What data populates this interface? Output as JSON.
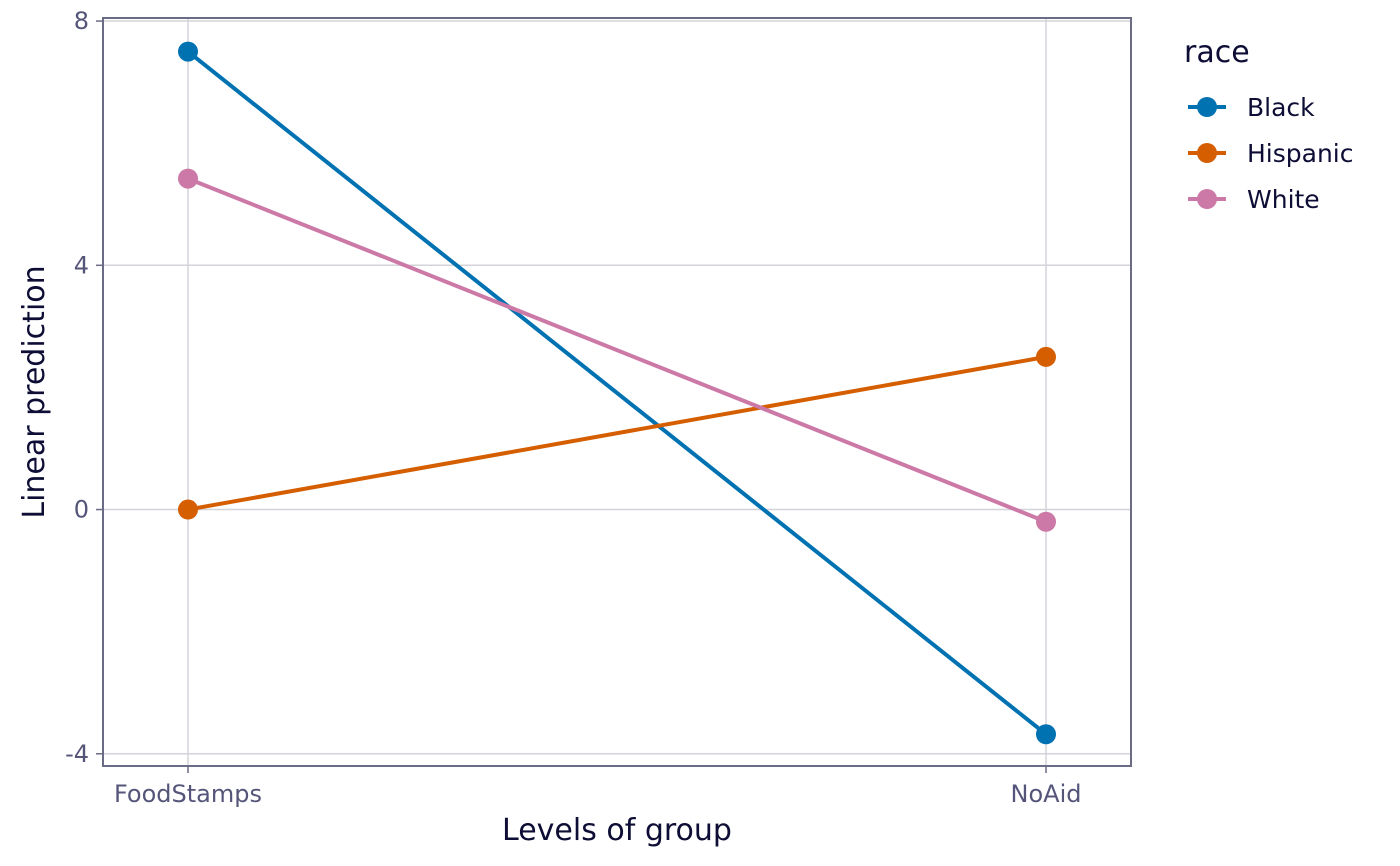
{
  "colors": {
    "grid": "#d3d3da",
    "panel_border": "#6b6b85",
    "tick_label": "#55557a",
    "axis_title": "#0d0d35",
    "legend_text": "#0d0d35"
  },
  "chart_data": {
    "type": "line",
    "title": "",
    "xlabel": "Levels of group",
    "ylabel": "Linear prediction",
    "categories": [
      "FoodStamps",
      "NoAid"
    ],
    "ylim": [
      -4.2,
      8.05
    ],
    "y_ticks": [
      -4,
      0,
      4,
      8
    ],
    "y_tick_labels": [
      "-4",
      "0",
      "4",
      "8"
    ],
    "grid": true,
    "legend": {
      "title": "race",
      "position": "right"
    },
    "series": [
      {
        "name": "Black",
        "color": "#0072b2",
        "values": [
          7.5,
          -3.68
        ]
      },
      {
        "name": "Hispanic",
        "color": "#d55e00",
        "values": [
          0.0,
          2.5
        ]
      },
      {
        "name": "White",
        "color": "#cc79a7",
        "values": [
          5.42,
          -0.2
        ]
      }
    ]
  }
}
